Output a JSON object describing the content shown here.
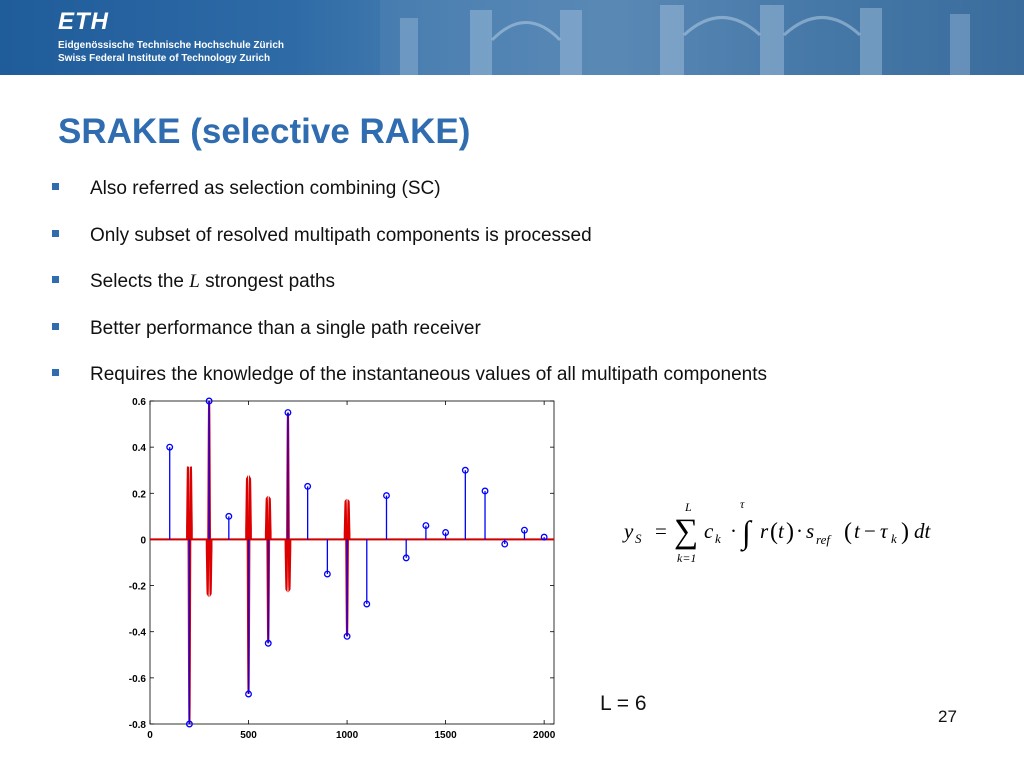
{
  "header": {
    "logo": "ETH",
    "line1": "Eidgenössische Technische Hochschule Zürich",
    "line2": "Swiss Federal Institute of Technology Zurich"
  },
  "slide": {
    "title": "SRAKE (selective RAKE)",
    "bullets": [
      {
        "text": "Also referred as selection combining (SC)"
      },
      {
        "text": "Only subset of resolved multipath components is processed"
      },
      {
        "pre": "Selects the ",
        "var": "L",
        "post": " strongest paths"
      },
      {
        "text": "Better performance than a single path receiver"
      },
      {
        "text": "Requires the knowledge of the instantaneous values of all multipath components"
      }
    ],
    "l_value": "L = 6",
    "page_number": "27",
    "formula": {
      "lhs": "y",
      "lhs_sub": "S",
      "upper": "L",
      "lower": "k=1",
      "tau": "τ"
    }
  },
  "chart_data": {
    "type": "stem",
    "xlim": [
      0,
      2050
    ],
    "ylim": [
      -0.8,
      0.6
    ],
    "xticks": [
      0,
      500,
      1000,
      1500,
      2000
    ],
    "yticks": [
      0.6,
      0.4,
      0.2,
      0,
      -0.2,
      -0.4,
      -0.6,
      -0.8
    ],
    "series": [
      {
        "color": "#0000ff",
        "x": [
          100,
          200,
          300,
          400,
          500,
          600,
          700,
          800,
          900,
          1000,
          1100,
          1200,
          1300,
          1400,
          1500,
          1600,
          1700,
          1800,
          1900,
          2000
        ],
        "values": [
          0.4,
          -0.8,
          0.6,
          0.1,
          -0.67,
          -0.45,
          0.55,
          0.23,
          -0.15,
          -0.42,
          -0.28,
          0.19,
          -0.08,
          0.06,
          0.03,
          0.3,
          0.21,
          -0.02,
          0.04,
          0.01
        ]
      }
    ],
    "pulses": {
      "color": "#dd0000",
      "centers": [
        200,
        300,
        500,
        600,
        700,
        1000
      ],
      "values": [
        -0.8,
        0.6,
        -0.67,
        -0.45,
        0.55,
        -0.42
      ]
    }
  }
}
